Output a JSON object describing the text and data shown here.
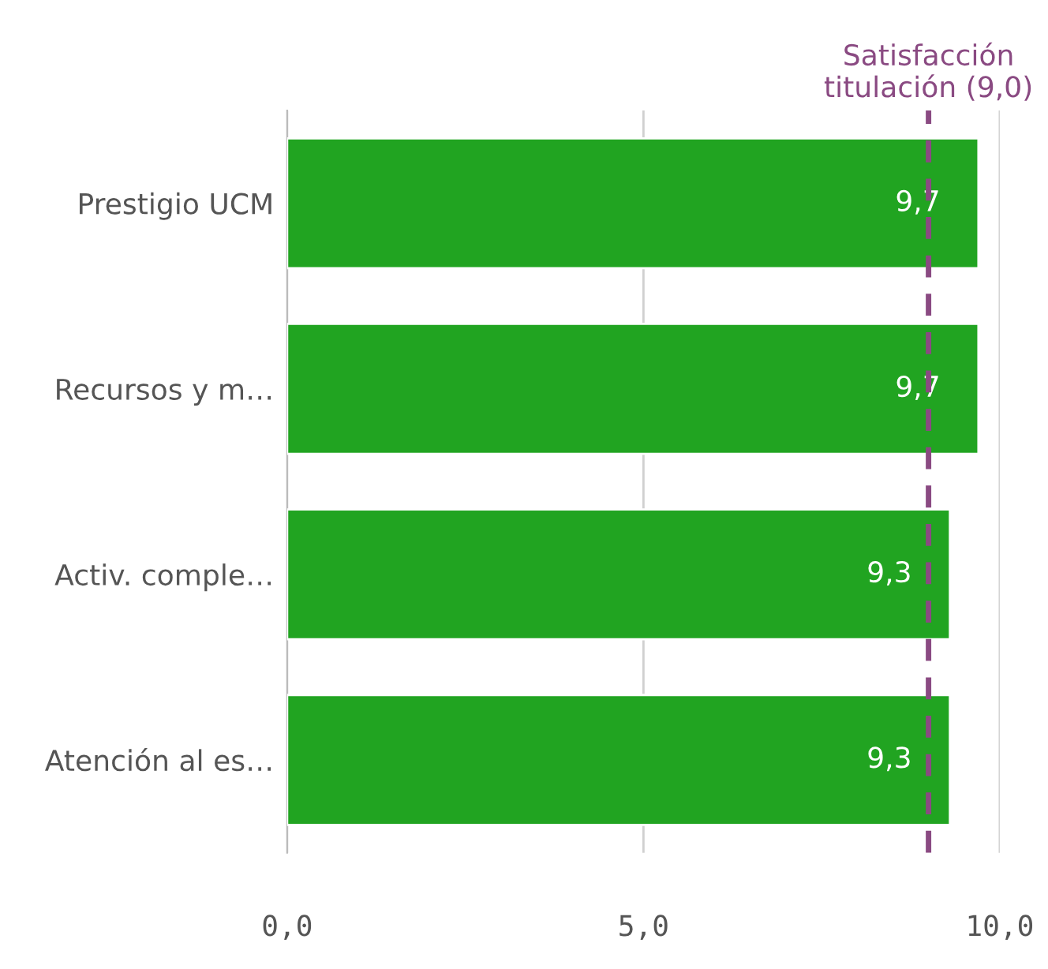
{
  "chart_data": {
    "type": "bar",
    "orientation": "horizontal",
    "categories": [
      "Prestigio UCM",
      "Recursos y m…",
      "Activ. comple…",
      "Atención al es…"
    ],
    "values": [
      9.7,
      9.7,
      9.3,
      9.3
    ],
    "color": "#21a421",
    "value_labels": [
      "9,7",
      "9,7",
      "9,3",
      "9,3"
    ],
    "xlim": [
      0,
      10
    ],
    "xticks": [
      {
        "value": 0,
        "label": "0,0"
      },
      {
        "value": 5,
        "label": "5,0"
      },
      {
        "value": 10,
        "label": "10,0"
      }
    ],
    "grid": "x",
    "ref_lines": [
      {
        "axis": "x",
        "value": 9.0,
        "label": "Satisfacción\ntitulación (9,0)",
        "color": "#8a4a82",
        "line_style": "dashed"
      }
    ]
  }
}
